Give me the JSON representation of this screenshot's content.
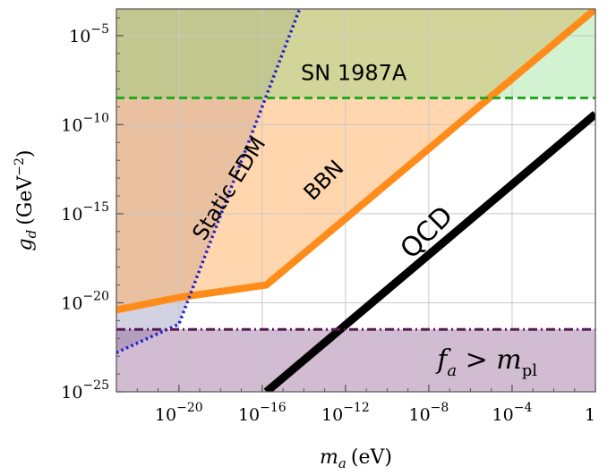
{
  "chart_data": {
    "type": "line",
    "xlabel": "m_a (eV)",
    "xlabel_main": "m",
    "xlabel_sub": "a",
    "xlabel_unit": "(eV)",
    "ylabel": "g_d (GeV^-2)",
    "ylabel_main": "g",
    "ylabel_sub": "d",
    "ylabel_unit": "(GeV",
    "ylabel_unit_exp": "−2",
    "ylabel_unit_close": ")",
    "x_scale": "log10",
    "y_scale": "log10",
    "xlim_log10": [
      -23,
      0
    ],
    "ylim_log10": [
      -25,
      -3.5
    ],
    "x_ticks": [
      {
        "exp": -20,
        "base": "10",
        "sup": "−20"
      },
      {
        "exp": -16,
        "base": "10",
        "sup": "−16"
      },
      {
        "exp": -12,
        "base": "10",
        "sup": "−12"
      },
      {
        "exp": -8,
        "base": "10",
        "sup": "−8"
      },
      {
        "exp": -4,
        "base": "10",
        "sup": "−4"
      },
      {
        "exp": 0,
        "text": "1",
        "base": "10",
        "sup": "0"
      }
    ],
    "y_ticks": [
      {
        "exp": -5,
        "base": "10",
        "sup": "−5"
      },
      {
        "exp": -10,
        "base": "10",
        "sup": "−10"
      },
      {
        "exp": -15,
        "base": "10",
        "sup": "−15"
      },
      {
        "exp": -20,
        "base": "10",
        "sup": "−20"
      },
      {
        "exp": -25,
        "base": "10",
        "sup": "−25"
      }
    ],
    "grid": true,
    "regions": [
      {
        "name": "Static EDM",
        "color": "#4d4d8f",
        "opacity": 0.25,
        "points": [
          [
            -23,
            -22.8
          ],
          [
            -20,
            -21.2
          ],
          [
            -14.2,
            -3.5
          ],
          [
            -23,
            -3.5
          ]
        ]
      },
      {
        "name": "BBN",
        "color": "#ffae5e",
        "opacity": 0.5,
        "points": [
          [
            -23,
            -20.4
          ],
          [
            -20,
            -19.7
          ],
          [
            -15.8,
            -19.0
          ],
          [
            0,
            -3.5
          ],
          [
            -23,
            -3.5
          ]
        ]
      },
      {
        "name": "SN 1987A",
        "color": "#6bd46b",
        "opacity": 0.3,
        "points": [
          [
            -23,
            -8.5
          ],
          [
            0,
            -8.5
          ],
          [
            0,
            -3.5
          ],
          [
            -23,
            -3.5
          ]
        ]
      },
      {
        "name": "f_a > m_pl",
        "color": "#7b3f7b",
        "opacity": 0.35,
        "points": [
          [
            -23,
            -21.5
          ],
          [
            0,
            -21.5
          ],
          [
            0,
            -25
          ],
          [
            -23,
            -25
          ]
        ]
      }
    ],
    "series": [
      {
        "name": "QCD",
        "color": "#000000",
        "width": 9,
        "style": "solid",
        "x": [
          -15.8,
          0
        ],
        "y": [
          -25,
          -9.4
        ]
      },
      {
        "name": "BBN",
        "color": "#ff8c1a",
        "width": 8,
        "style": "solid",
        "x": [
          -23,
          -20,
          -15.8,
          0
        ],
        "y": [
          -20.4,
          -19.7,
          -19.0,
          -3.5
        ]
      },
      {
        "name": "Static EDM",
        "color": "#1f1fc9",
        "width": 3.5,
        "style": "dotted",
        "x": [
          -23,
          -20,
          -14.2
        ],
        "y": [
          -22.8,
          -21.2,
          -3.5
        ]
      },
      {
        "name": "SN 1987A",
        "color": "#22aa22",
        "width": 3,
        "style": "dashed",
        "x": [
          -23,
          0
        ],
        "y": [
          -8.5,
          -8.5
        ]
      },
      {
        "name": "f_a > m_pl",
        "color": "#5a1a5a",
        "width": 3,
        "style": "dashdot",
        "x": [
          -23,
          0
        ],
        "y": [
          -21.5,
          -21.5
        ]
      }
    ],
    "annotations": [
      {
        "text": "SN 1987A",
        "x": -11.6,
        "y": -7.5,
        "rotate": false
      },
      {
        "text": "Static EDM",
        "x": -17.3,
        "y": -13.8,
        "rotate": true,
        "angle": -58
      },
      {
        "text": "BBN",
        "x": -12.8,
        "y": -13.4,
        "rotate": true,
        "angle": -45
      },
      {
        "text": "QCD",
        "x": -7.8,
        "y": -16.4,
        "rotate": true,
        "angle": -45
      }
    ],
    "fa_label": {
      "f": "f",
      "f_sub": "a",
      "op": " > ",
      "m": "m",
      "m_sub": "pl",
      "x": -7.6,
      "y": -23.2
    }
  }
}
